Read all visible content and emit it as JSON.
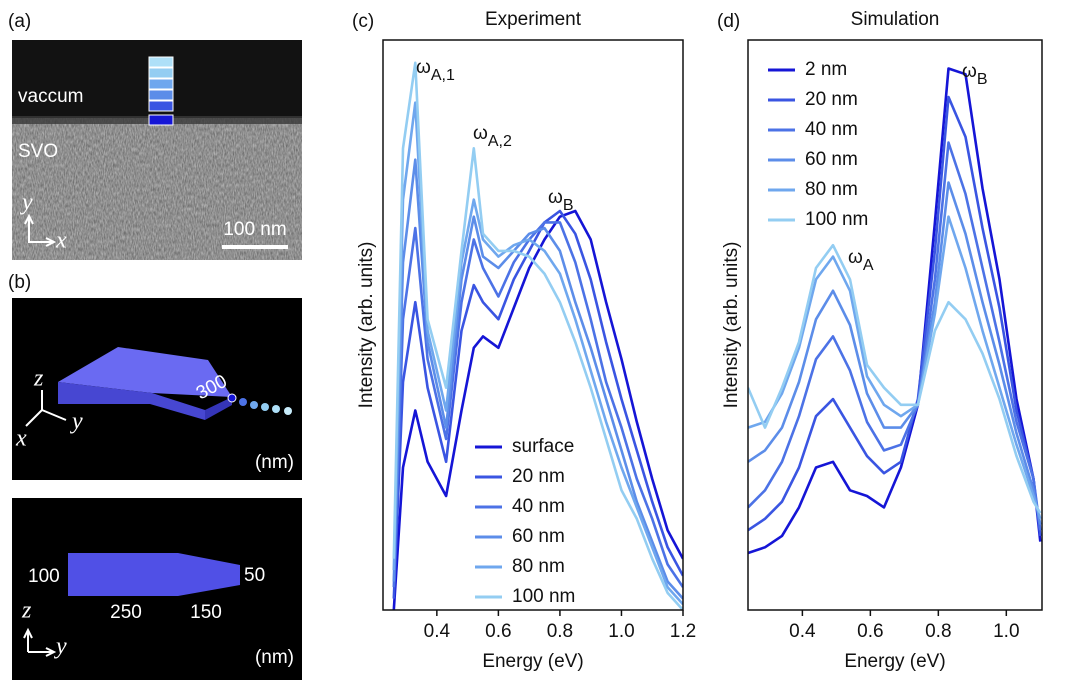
{
  "panel_a": {
    "label": "(a)",
    "top_region": "vaccum",
    "bottom_region": "SVO",
    "axes": [
      "y",
      "x"
    ],
    "scale_bar": "100 nm"
  },
  "panel_b": {
    "label": "(b)",
    "top": {
      "axes": [
        "z",
        "y",
        "x"
      ],
      "length": "300",
      "unit": "(nm)"
    },
    "bottom": {
      "dims": [
        "100",
        "50",
        "250",
        "150"
      ],
      "axes": [
        "z",
        "y"
      ],
      "unit": "(nm)"
    }
  },
  "chart_data": [
    {
      "type": "line",
      "panel_label": "(c)",
      "title": "Experiment",
      "x_label": "Energy (eV)",
      "y_label": "Intensity (arb. units)",
      "xlim": [
        0.225,
        1.2
      ],
      "ylim": [
        0,
        1
      ],
      "xticks": [
        0.4,
        0.6,
        0.8,
        {
          "value": 1,
          "label": "1.0"
        },
        1.2
      ],
      "legend": "lower center",
      "x": [
        0.26,
        0.29,
        0.33,
        0.37,
        0.43,
        0.48,
        0.52,
        0.55,
        0.6,
        0.65,
        0.7,
        0.75,
        0.8,
        0.85,
        0.9,
        0.95,
        1.0,
        1.05,
        1.1,
        1.15,
        1.2
      ],
      "series": [
        {
          "name": "surface",
          "color": "#1515d6",
          "values": [
            0,
            0.25,
            0.35,
            0.26,
            0.2,
            0.35,
            0.46,
            0.48,
            0.46,
            0.53,
            0.6,
            0.65,
            0.69,
            0.7,
            0.65,
            0.54,
            0.44,
            0.33,
            0.23,
            0.14,
            0.09
          ]
        },
        {
          "name": "20 nm",
          "color": "#3a55e2",
          "values": [
            0.02,
            0.4,
            0.54,
            0.39,
            0.26,
            0.49,
            0.57,
            0.54,
            0.51,
            0.58,
            0.63,
            0.68,
            0.7,
            0.66,
            0.58,
            0.47,
            0.37,
            0.28,
            0.19,
            0.11,
            0.06
          ]
        },
        {
          "name": "40 nm",
          "color": "#4c72e6",
          "values": [
            0.04,
            0.51,
            0.67,
            0.44,
            0.3,
            0.54,
            0.65,
            0.6,
            0.55,
            0.61,
            0.65,
            0.68,
            0.68,
            0.61,
            0.51,
            0.4,
            0.32,
            0.23,
            0.16,
            0.08,
            0.04
          ]
        },
        {
          "name": "60 nm",
          "color": "#5c8de9",
          "values": [
            0.05,
            0.61,
            0.79,
            0.47,
            0.32,
            0.58,
            0.69,
            0.62,
            0.6,
            0.63,
            0.66,
            0.67,
            0.63,
            0.54,
            0.46,
            0.37,
            0.28,
            0.19,
            0.12,
            0.05,
            0.02
          ]
        },
        {
          "name": "80 nm",
          "color": "#6fa7ee",
          "values": [
            0.07,
            0.72,
            0.89,
            0.49,
            0.35,
            0.61,
            0.72,
            0.65,
            0.62,
            0.64,
            0.65,
            0.63,
            0.59,
            0.51,
            0.42,
            0.33,
            0.25,
            0.18,
            0.11,
            0.04,
            0.01
          ]
        },
        {
          "name": "100 nm",
          "color": "#93cdf2",
          "values": [
            0.09,
            0.81,
            0.96,
            0.51,
            0.39,
            0.63,
            0.81,
            0.66,
            0.63,
            0.63,
            0.62,
            0.59,
            0.54,
            0.47,
            0.39,
            0.3,
            0.21,
            0.16,
            0.09,
            0.03,
            0
          ]
        }
      ],
      "annotations": [
        {
          "text": "ω",
          "sub": "A,1"
        },
        {
          "text": "ω",
          "sub": "A,2"
        },
        {
          "text": "ω",
          "sub": "B"
        }
      ]
    },
    {
      "type": "line",
      "panel_label": "(d)",
      "title": "Simulation",
      "x_label": "Energy (eV)",
      "y_label": "Intensity (arb. units)",
      "xlim": [
        0.24,
        1.105
      ],
      "ylim": [
        0,
        1
      ],
      "xticks": [
        0.4,
        0.6,
        0.8,
        {
          "value": 1,
          "label": "1.0"
        }
      ],
      "legend": "upper left",
      "x": [
        0.24,
        0.29,
        0.34,
        0.39,
        0.44,
        0.49,
        0.54,
        0.59,
        0.64,
        0.69,
        0.74,
        0.79,
        0.83,
        0.88,
        0.93,
        0.98,
        1.03,
        1.08,
        1.1
      ],
      "series": [
        {
          "name": "2 nm",
          "color": "#1515d6",
          "values": [
            0.1,
            0.11,
            0.13,
            0.18,
            0.25,
            0.26,
            0.21,
            0.2,
            0.18,
            0.25,
            0.36,
            0.68,
            0.95,
            0.94,
            0.74,
            0.58,
            0.37,
            0.23,
            0.12
          ]
        },
        {
          "name": "20 nm",
          "color": "#3a55e2",
          "values": [
            0.14,
            0.16,
            0.19,
            0.25,
            0.34,
            0.37,
            0.32,
            0.27,
            0.24,
            0.26,
            0.37,
            0.63,
            0.9,
            0.83,
            0.67,
            0.53,
            0.35,
            0.23,
            0.13
          ]
        },
        {
          "name": "40 nm",
          "color": "#4c72e6",
          "values": [
            0.18,
            0.21,
            0.26,
            0.34,
            0.44,
            0.48,
            0.42,
            0.33,
            0.28,
            0.29,
            0.36,
            0.58,
            0.82,
            0.73,
            0.6,
            0.47,
            0.33,
            0.23,
            0.14
          ]
        },
        {
          "name": "60 nm",
          "color": "#5c8de9",
          "values": [
            0.26,
            0.28,
            0.32,
            0.4,
            0.51,
            0.56,
            0.5,
            0.38,
            0.32,
            0.32,
            0.36,
            0.54,
            0.75,
            0.66,
            0.54,
            0.43,
            0.31,
            0.21,
            0.15
          ]
        },
        {
          "name": "80 nm",
          "color": "#6fa7ee",
          "values": [
            0.32,
            0.33,
            0.38,
            0.46,
            0.58,
            0.62,
            0.56,
            0.41,
            0.36,
            0.34,
            0.36,
            0.52,
            0.69,
            0.6,
            0.49,
            0.39,
            0.29,
            0.2,
            0.16
          ]
        },
        {
          "name": "100 nm",
          "color": "#93cdf2",
          "values": [
            0.39,
            0.32,
            0.39,
            0.47,
            0.6,
            0.64,
            0.58,
            0.43,
            0.39,
            0.36,
            0.36,
            0.49,
            0.54,
            0.51,
            0.45,
            0.37,
            0.27,
            0.19,
            0.17
          ]
        }
      ],
      "annotations": [
        {
          "text": "ω",
          "sub": "A"
        },
        {
          "text": "ω",
          "sub": "B"
        }
      ]
    }
  ]
}
